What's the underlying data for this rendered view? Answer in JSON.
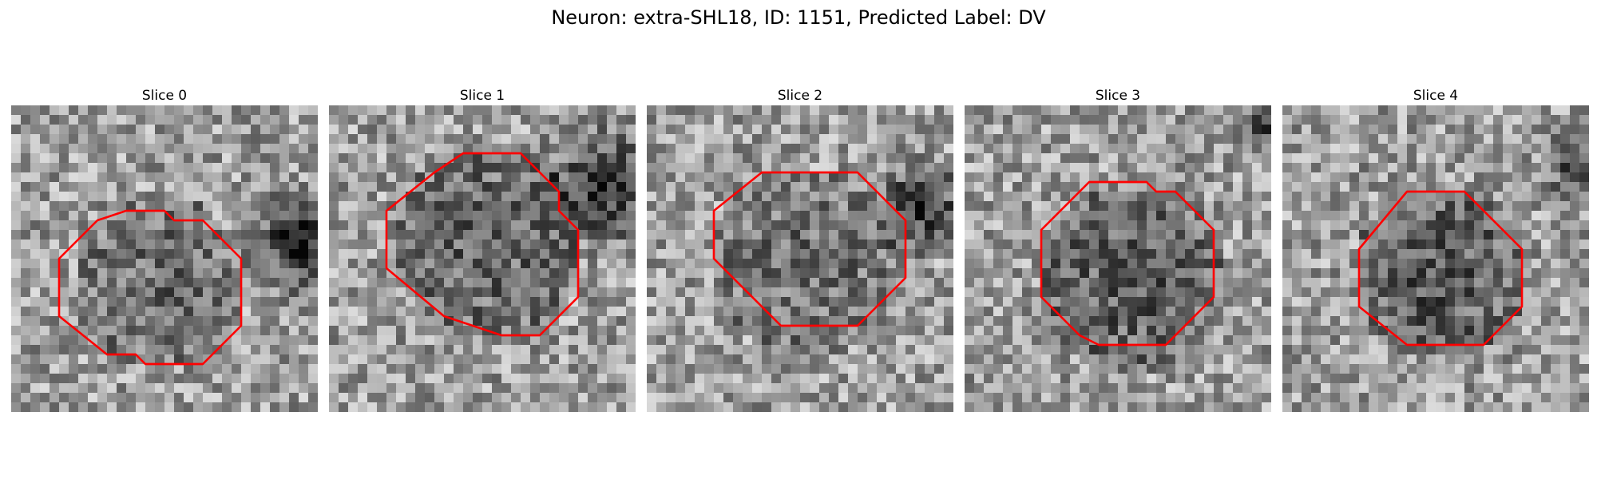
{
  "figure": {
    "title": "Neuron: extra-SHL18, ID: 1151, Predicted Label: DV",
    "grid_size": 32,
    "contour_color": "#ff0000",
    "colormap": "grayscale"
  },
  "panels": [
    {
      "title": "Slice 0",
      "seed": 11,
      "blob": {
        "cx": 15,
        "cy": 18,
        "r": 9,
        "strength": 0.22
      },
      "dark_corner": {
        "cx": 30,
        "cy": 14,
        "r": 7,
        "strength": 0.55
      },
      "contour": [
        [
          5,
          16
        ],
        [
          9,
          12
        ],
        [
          12,
          11
        ],
        [
          16,
          11
        ],
        [
          17,
          12
        ],
        [
          20,
          12
        ],
        [
          24,
          16
        ],
        [
          24,
          23
        ],
        [
          20,
          27
        ],
        [
          14,
          27
        ],
        [
          13,
          26
        ],
        [
          10,
          26
        ],
        [
          5,
          22
        ]
      ]
    },
    {
      "title": "Slice 1",
      "seed": 23,
      "blob": {
        "cx": 16,
        "cy": 14,
        "r": 10,
        "strength": 0.25
      },
      "dark_corner": {
        "cx": 28,
        "cy": 8,
        "r": 8,
        "strength": 0.45
      },
      "contour": [
        [
          6,
          11
        ],
        [
          11,
          7
        ],
        [
          14,
          5
        ],
        [
          20,
          5
        ],
        [
          22,
          7
        ],
        [
          24,
          9
        ],
        [
          24,
          11
        ],
        [
          26,
          13
        ],
        [
          26,
          20
        ],
        [
          22,
          24
        ],
        [
          18,
          24
        ],
        [
          15,
          23
        ],
        [
          12,
          22
        ],
        [
          6,
          17
        ]
      ]
    },
    {
      "title": "Slice 2",
      "seed": 37,
      "blob": {
        "cx": 16,
        "cy": 16,
        "r": 10,
        "strength": 0.2
      },
      "dark_corner": {
        "cx": 28,
        "cy": 10,
        "r": 6,
        "strength": 0.5
      },
      "contour": [
        [
          7,
          11
        ],
        [
          12,
          7
        ],
        [
          22,
          7
        ],
        [
          24,
          9
        ],
        [
          27,
          12
        ],
        [
          27,
          18
        ],
        [
          22,
          23
        ],
        [
          14,
          23
        ],
        [
          7,
          16
        ]
      ]
    },
    {
      "title": "Slice 3",
      "seed": 53,
      "blob": {
        "cx": 17,
        "cy": 18,
        "r": 10,
        "strength": 0.28
      },
      "dark_corner": {
        "cx": 31,
        "cy": 2,
        "r": 4,
        "strength": 0.4
      },
      "contour": [
        [
          8,
          13
        ],
        [
          13,
          8
        ],
        [
          19,
          8
        ],
        [
          20,
          9
        ],
        [
          22,
          9
        ],
        [
          26,
          13
        ],
        [
          26,
          20
        ],
        [
          21,
          25
        ],
        [
          14,
          25
        ],
        [
          12,
          24
        ],
        [
          8,
          20
        ]
      ]
    },
    {
      "title": "Slice 4",
      "seed": 71,
      "blob": {
        "cx": 16,
        "cy": 17,
        "r": 9,
        "strength": 0.3
      },
      "dark_corner": {
        "cx": 31,
        "cy": 6,
        "r": 5,
        "strength": 0.4
      },
      "contour": [
        [
          8,
          15
        ],
        [
          13,
          9
        ],
        [
          19,
          9
        ],
        [
          25,
          15
        ],
        [
          25,
          21
        ],
        [
          21,
          25
        ],
        [
          13,
          25
        ],
        [
          8,
          21
        ]
      ]
    }
  ]
}
